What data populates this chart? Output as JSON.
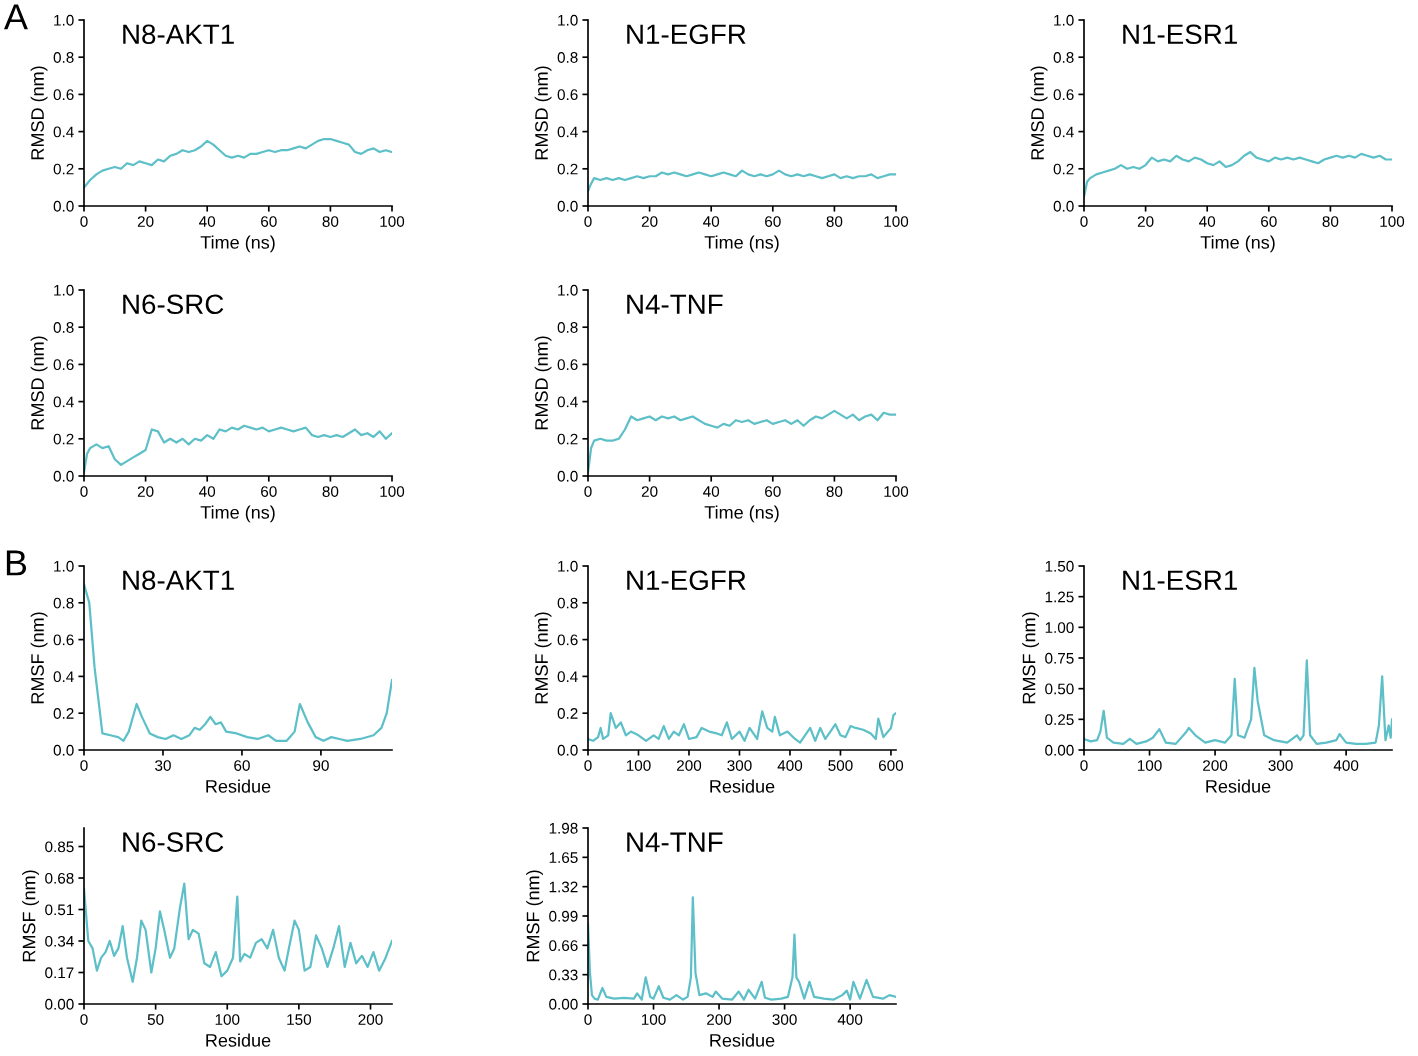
{
  "chart_data": [
    {
      "type": "line",
      "title": "N8-AKT1",
      "xlabel": "Time (ns)",
      "ylabel": "RMSD (nm)",
      "annotations": [
        "A"
      ],
      "xlim": [
        0,
        100
      ],
      "ylim": [
        0,
        1
      ],
      "xticks": [
        0,
        20,
        40,
        60,
        80,
        100
      ],
      "yticks": [
        {
          "value": 0,
          "label": "0.0"
        },
        0.2,
        0.4,
        0.6,
        0.8,
        {
          "value": 1,
          "label": "1.0"
        }
      ],
      "series": [
        {
          "color": "#5dbfc7",
          "x": [
            0,
            2,
            4,
            6,
            8,
            10,
            12,
            14,
            16,
            18,
            20,
            22,
            24,
            26,
            28,
            30,
            32,
            34,
            36,
            38,
            40,
            42,
            44,
            46,
            48,
            50,
            52,
            54,
            56,
            58,
            60,
            62,
            64,
            66,
            68,
            70,
            72,
            74,
            76,
            78,
            80,
            82,
            84,
            86,
            88,
            90,
            92,
            94,
            96,
            98,
            100
          ],
          "values": [
            0.1,
            0.14,
            0.17,
            0.19,
            0.2,
            0.21,
            0.2,
            0.23,
            0.22,
            0.24,
            0.23,
            0.22,
            0.25,
            0.24,
            0.27,
            0.28,
            0.3,
            0.29,
            0.3,
            0.32,
            0.35,
            0.33,
            0.3,
            0.27,
            0.26,
            0.27,
            0.26,
            0.28,
            0.28,
            0.29,
            0.3,
            0.29,
            0.3,
            0.3,
            0.31,
            0.32,
            0.31,
            0.33,
            0.35,
            0.36,
            0.36,
            0.35,
            0.34,
            0.33,
            0.29,
            0.28,
            0.3,
            0.31,
            0.29,
            0.3,
            0.29
          ]
        }
      ]
    },
    {
      "type": "line",
      "title": "N1-EGFR",
      "xlabel": "Time (ns)",
      "ylabel": "RMSD (nm)",
      "xlim": [
        0,
        100
      ],
      "ylim": [
        0,
        1
      ],
      "xticks": [
        0,
        20,
        40,
        60,
        80,
        100
      ],
      "yticks": [
        {
          "value": 0,
          "label": "0.0"
        },
        0.2,
        0.4,
        0.6,
        0.8,
        {
          "value": 1,
          "label": "1.0"
        }
      ],
      "series": [
        {
          "color": "#5dbfc7",
          "x": [
            0,
            1,
            2,
            4,
            6,
            8,
            10,
            12,
            14,
            16,
            18,
            20,
            22,
            24,
            26,
            28,
            30,
            32,
            34,
            36,
            38,
            40,
            42,
            44,
            46,
            48,
            50,
            52,
            54,
            56,
            58,
            60,
            62,
            64,
            66,
            68,
            70,
            72,
            74,
            76,
            78,
            80,
            82,
            84,
            86,
            88,
            90,
            92,
            94,
            96,
            98,
            100
          ],
          "values": [
            0.08,
            0.12,
            0.15,
            0.14,
            0.15,
            0.14,
            0.15,
            0.14,
            0.15,
            0.16,
            0.15,
            0.16,
            0.16,
            0.18,
            0.17,
            0.18,
            0.17,
            0.16,
            0.17,
            0.18,
            0.17,
            0.16,
            0.17,
            0.18,
            0.17,
            0.16,
            0.19,
            0.17,
            0.16,
            0.17,
            0.16,
            0.17,
            0.19,
            0.17,
            0.16,
            0.17,
            0.16,
            0.17,
            0.16,
            0.15,
            0.16,
            0.17,
            0.15,
            0.16,
            0.15,
            0.16,
            0.16,
            0.17,
            0.15,
            0.16,
            0.17,
            0.17
          ]
        }
      ]
    },
    {
      "type": "line",
      "title": "N1-ESR1",
      "xlabel": "Time (ns)",
      "ylabel": "RMSD (nm)",
      "xlim": [
        0,
        100
      ],
      "ylim": [
        0,
        1
      ],
      "xticks": [
        0,
        20,
        40,
        60,
        80,
        100
      ],
      "yticks": [
        {
          "value": 0,
          "label": "0.0"
        },
        0.2,
        0.4,
        0.6,
        0.8,
        {
          "value": 1,
          "label": "1.0"
        }
      ],
      "series": [
        {
          "color": "#5dbfc7",
          "x": [
            0,
            1,
            2,
            4,
            6,
            8,
            10,
            12,
            14,
            16,
            18,
            20,
            22,
            24,
            26,
            28,
            30,
            32,
            34,
            36,
            38,
            40,
            42,
            44,
            46,
            48,
            50,
            52,
            54,
            56,
            58,
            60,
            62,
            64,
            66,
            68,
            70,
            72,
            74,
            76,
            78,
            80,
            82,
            84,
            86,
            88,
            90,
            92,
            94,
            96,
            98,
            100
          ],
          "values": [
            0.05,
            0.13,
            0.15,
            0.17,
            0.18,
            0.19,
            0.2,
            0.22,
            0.2,
            0.21,
            0.2,
            0.22,
            0.26,
            0.24,
            0.25,
            0.24,
            0.27,
            0.25,
            0.24,
            0.26,
            0.25,
            0.23,
            0.22,
            0.24,
            0.21,
            0.22,
            0.24,
            0.27,
            0.29,
            0.26,
            0.25,
            0.24,
            0.26,
            0.25,
            0.26,
            0.25,
            0.26,
            0.25,
            0.24,
            0.23,
            0.25,
            0.26,
            0.27,
            0.26,
            0.27,
            0.26,
            0.28,
            0.27,
            0.26,
            0.27,
            0.25,
            0.25
          ]
        }
      ]
    },
    {
      "type": "line",
      "title": "N6-SRC",
      "xlabel": "Time (ns)",
      "ylabel": "RMSD (nm)",
      "xlim": [
        0,
        100
      ],
      "ylim": [
        0,
        1
      ],
      "xticks": [
        0,
        20,
        40,
        60,
        80,
        100
      ],
      "yticks": [
        {
          "value": 0,
          "label": "0.0"
        },
        0.2,
        0.4,
        0.6,
        0.8,
        {
          "value": 1,
          "label": "1.0"
        }
      ],
      "series": [
        {
          "color": "#5dbfc7",
          "x": [
            0,
            1,
            2,
            4,
            6,
            8,
            10,
            12,
            14,
            16,
            18,
            20,
            22,
            24,
            26,
            28,
            30,
            32,
            34,
            36,
            38,
            40,
            42,
            44,
            46,
            48,
            50,
            52,
            54,
            56,
            58,
            60,
            62,
            64,
            66,
            68,
            70,
            72,
            74,
            76,
            78,
            80,
            82,
            84,
            86,
            88,
            90,
            92,
            94,
            96,
            98,
            100
          ],
          "values": [
            0.02,
            0.12,
            0.15,
            0.17,
            0.15,
            0.16,
            0.09,
            0.06,
            0.08,
            0.1,
            0.12,
            0.14,
            0.25,
            0.24,
            0.18,
            0.2,
            0.18,
            0.2,
            0.17,
            0.2,
            0.19,
            0.22,
            0.2,
            0.25,
            0.24,
            0.26,
            0.25,
            0.27,
            0.26,
            0.25,
            0.26,
            0.24,
            0.25,
            0.26,
            0.25,
            0.24,
            0.25,
            0.26,
            0.22,
            0.21,
            0.22,
            0.21,
            0.22,
            0.21,
            0.23,
            0.25,
            0.22,
            0.23,
            0.21,
            0.24,
            0.2,
            0.23
          ]
        }
      ]
    },
    {
      "type": "line",
      "title": "N4-TNF",
      "xlabel": "Time (ns)",
      "ylabel": "RMSD (nm)",
      "xlim": [
        0,
        100
      ],
      "ylim": [
        0,
        1
      ],
      "xticks": [
        0,
        20,
        40,
        60,
        80,
        100
      ],
      "yticks": [
        {
          "value": 0,
          "label": "0.0"
        },
        0.2,
        0.4,
        0.6,
        0.8,
        {
          "value": 1,
          "label": "1.0"
        }
      ],
      "series": [
        {
          "color": "#5dbfc7",
          "x": [
            0,
            1,
            2,
            4,
            6,
            8,
            10,
            12,
            14,
            16,
            18,
            20,
            22,
            24,
            26,
            28,
            30,
            32,
            34,
            36,
            38,
            40,
            42,
            44,
            46,
            48,
            50,
            52,
            54,
            56,
            58,
            60,
            62,
            64,
            66,
            68,
            70,
            72,
            74,
            76,
            78,
            80,
            82,
            84,
            86,
            88,
            90,
            92,
            94,
            96,
            98,
            100
          ],
          "values": [
            0.02,
            0.15,
            0.19,
            0.2,
            0.19,
            0.19,
            0.2,
            0.25,
            0.32,
            0.3,
            0.31,
            0.32,
            0.3,
            0.32,
            0.31,
            0.32,
            0.3,
            0.31,
            0.32,
            0.3,
            0.28,
            0.27,
            0.26,
            0.28,
            0.27,
            0.3,
            0.29,
            0.3,
            0.28,
            0.29,
            0.3,
            0.28,
            0.29,
            0.3,
            0.28,
            0.3,
            0.27,
            0.3,
            0.32,
            0.31,
            0.33,
            0.35,
            0.33,
            0.31,
            0.33,
            0.3,
            0.32,
            0.33,
            0.3,
            0.34,
            0.33,
            0.33
          ]
        }
      ]
    },
    {
      "type": "line",
      "title": "N8-AKT1",
      "xlabel": "Residue",
      "ylabel": "RMSF (nm)",
      "annotations": [
        "B"
      ],
      "xlim": [
        0,
        117
      ],
      "ylim": [
        0,
        1
      ],
      "xticks": [
        0,
        30,
        60,
        90
      ],
      "yticks": [
        {
          "value": 0,
          "label": "0.0"
        },
        0.2,
        0.4,
        0.6,
        0.8,
        {
          "value": 1,
          "label": "1.0"
        }
      ],
      "series": [
        {
          "color": "#5dbfc7",
          "x": [
            0,
            2,
            4,
            7,
            10,
            13,
            15,
            17,
            20,
            22,
            25,
            28,
            31,
            34,
            37,
            40,
            42,
            44,
            46,
            48,
            50,
            52,
            54,
            58,
            62,
            66,
            70,
            73,
            77,
            80,
            82,
            85,
            88,
            91,
            94,
            97,
            100,
            105,
            110,
            113,
            115,
            117
          ],
          "values": [
            0.9,
            0.8,
            0.45,
            0.09,
            0.08,
            0.07,
            0.05,
            0.1,
            0.25,
            0.18,
            0.09,
            0.07,
            0.06,
            0.08,
            0.06,
            0.08,
            0.12,
            0.11,
            0.14,
            0.18,
            0.14,
            0.15,
            0.1,
            0.09,
            0.07,
            0.06,
            0.08,
            0.05,
            0.05,
            0.1,
            0.25,
            0.15,
            0.07,
            0.05,
            0.07,
            0.06,
            0.05,
            0.06,
            0.08,
            0.12,
            0.2,
            0.38
          ]
        }
      ]
    },
    {
      "type": "line",
      "title": "N1-EGFR",
      "xlabel": "Residue",
      "ylabel": "RMSF (nm)",
      "xlim": [
        0,
        610
      ],
      "ylim": [
        0,
        1
      ],
      "xticks": [
        0,
        100,
        200,
        300,
        400,
        500,
        600
      ],
      "yticks": [
        {
          "value": 0,
          "label": "0.0"
        },
        0.2,
        0.4,
        0.6,
        0.8,
        {
          "value": 1,
          "label": "1.0"
        }
      ],
      "series": [
        {
          "color": "#5dbfc7",
          "x": [
            0,
            10,
            20,
            25,
            30,
            40,
            45,
            55,
            65,
            75,
            85,
            100,
            115,
            130,
            140,
            150,
            160,
            170,
            180,
            190,
            200,
            215,
            225,
            240,
            255,
            265,
            275,
            285,
            300,
            310,
            320,
            335,
            345,
            355,
            365,
            370,
            380,
            395,
            410,
            420,
            440,
            450,
            460,
            470,
            480,
            490,
            500,
            510,
            520,
            530,
            545,
            560,
            570,
            575,
            585,
            600,
            605,
            610
          ],
          "values": [
            0.06,
            0.05,
            0.07,
            0.12,
            0.06,
            0.08,
            0.2,
            0.12,
            0.15,
            0.08,
            0.1,
            0.08,
            0.05,
            0.08,
            0.06,
            0.13,
            0.06,
            0.1,
            0.08,
            0.14,
            0.06,
            0.07,
            0.12,
            0.1,
            0.09,
            0.08,
            0.15,
            0.06,
            0.1,
            0.05,
            0.12,
            0.06,
            0.21,
            0.12,
            0.1,
            0.18,
            0.08,
            0.1,
            0.06,
            0.04,
            0.12,
            0.05,
            0.12,
            0.06,
            0.1,
            0.14,
            0.08,
            0.07,
            0.13,
            0.12,
            0.11,
            0.09,
            0.06,
            0.17,
            0.07,
            0.12,
            0.19,
            0.2
          ]
        }
      ]
    },
    {
      "type": "line",
      "title": "N1-ESR1",
      "xlabel": "Residue",
      "ylabel": "RMSF (nm)",
      "xlim": [
        0,
        470
      ],
      "ylim": [
        0,
        1.5
      ],
      "xticks": [
        0,
        100,
        200,
        300,
        400
      ],
      "yticks": [
        {
          "value": 0,
          "label": "0.00"
        },
        {
          "value": 0.25,
          "label": "0.25"
        },
        {
          "value": 0.5,
          "label": "0.50"
        },
        {
          "value": 0.75,
          "label": "0.75"
        },
        {
          "value": 1.0,
          "label": "1.00"
        },
        {
          "value": 1.25,
          "label": "1.25"
        },
        {
          "value": 1.5,
          "label": "1.50"
        }
      ],
      "series": [
        {
          "color": "#5dbfc7",
          "x": [
            0,
            10,
            20,
            25,
            30,
            35,
            45,
            60,
            70,
            80,
            95,
            105,
            115,
            125,
            140,
            155,
            160,
            170,
            185,
            200,
            215,
            225,
            230,
            235,
            245,
            255,
            260,
            265,
            275,
            290,
            310,
            325,
            330,
            335,
            340,
            345,
            355,
            370,
            385,
            390,
            400,
            415,
            430,
            445,
            450,
            455,
            460,
            465,
            468,
            470
          ],
          "values": [
            0.09,
            0.07,
            0.08,
            0.15,
            0.32,
            0.1,
            0.06,
            0.05,
            0.09,
            0.05,
            0.07,
            0.1,
            0.17,
            0.06,
            0.05,
            0.14,
            0.18,
            0.12,
            0.06,
            0.08,
            0.06,
            0.12,
            0.58,
            0.12,
            0.1,
            0.25,
            0.67,
            0.4,
            0.12,
            0.08,
            0.06,
            0.12,
            0.08,
            0.12,
            0.73,
            0.12,
            0.05,
            0.06,
            0.08,
            0.13,
            0.06,
            0.05,
            0.05,
            0.06,
            0.2,
            0.6,
            0.08,
            0.2,
            0.1,
            0.25
          ]
        }
      ]
    },
    {
      "type": "line",
      "title": "N6-SRC",
      "xlabel": "Residue",
      "ylabel": "RMSF (nm)",
      "xlim": [
        0,
        215
      ],
      "ylim": [
        0,
        0.95
      ],
      "xticks": [
        0,
        50,
        100,
        150,
        200
      ],
      "yticks": [
        {
          "value": 0,
          "label": "0.00"
        },
        {
          "value": 0.17,
          "label": "0.17"
        },
        {
          "value": 0.34,
          "label": "0.34"
        },
        {
          "value": 0.51,
          "label": "0.51"
        },
        {
          "value": 0.68,
          "label": "0.68"
        },
        {
          "value": 0.85,
          "label": "0.85"
        }
      ],
      "series": [
        {
          "color": "#5dbfc7",
          "x": [
            0,
            3,
            6,
            9,
            12,
            15,
            18,
            21,
            24,
            27,
            30,
            34,
            37,
            40,
            43,
            47,
            50,
            53,
            56,
            60,
            63,
            67,
            70,
            73,
            76,
            80,
            84,
            88,
            92,
            96,
            100,
            104,
            107,
            109,
            112,
            116,
            120,
            124,
            128,
            132,
            136,
            140,
            143,
            147,
            150,
            154,
            158,
            162,
            166,
            170,
            174,
            178,
            182,
            186,
            190,
            194,
            198,
            202,
            206,
            210,
            215
          ],
          "values": [
            0.62,
            0.34,
            0.3,
            0.18,
            0.25,
            0.28,
            0.34,
            0.26,
            0.3,
            0.42,
            0.25,
            0.12,
            0.25,
            0.45,
            0.4,
            0.17,
            0.3,
            0.5,
            0.4,
            0.25,
            0.3,
            0.52,
            0.65,
            0.35,
            0.4,
            0.38,
            0.22,
            0.2,
            0.28,
            0.15,
            0.18,
            0.25,
            0.58,
            0.23,
            0.27,
            0.25,
            0.33,
            0.35,
            0.3,
            0.4,
            0.25,
            0.18,
            0.3,
            0.45,
            0.4,
            0.18,
            0.2,
            0.37,
            0.3,
            0.2,
            0.3,
            0.42,
            0.2,
            0.33,
            0.22,
            0.26,
            0.2,
            0.28,
            0.18,
            0.24,
            0.34
          ]
        }
      ]
    },
    {
      "type": "line",
      "title": "N4-TNF",
      "xlabel": "Residue",
      "ylabel": "RMSF (nm)",
      "xlim": [
        0,
        470
      ],
      "ylim": [
        0,
        1.98
      ],
      "xticks": [
        0,
        100,
        200,
        300,
        400
      ],
      "yticks": [
        {
          "value": 0,
          "label": "0.00"
        },
        {
          "value": 0.33,
          "label": "0.33"
        },
        {
          "value": 0.66,
          "label": "0.66"
        },
        {
          "value": 0.99,
          "label": "0.99"
        },
        {
          "value": 1.32,
          "label": "1.32"
        },
        {
          "value": 1.65,
          "label": "1.65"
        },
        {
          "value": 1.98,
          "label": "1.98"
        }
      ],
      "series": [
        {
          "color": "#5dbfc7",
          "x": [
            0,
            3,
            6,
            10,
            15,
            22,
            28,
            40,
            55,
            70,
            75,
            82,
            88,
            95,
            100,
            108,
            115,
            125,
            135,
            145,
            152,
            157,
            160,
            164,
            170,
            180,
            190,
            195,
            205,
            220,
            230,
            238,
            245,
            255,
            265,
            270,
            280,
            295,
            305,
            312,
            315,
            318,
            322,
            330,
            338,
            345,
            360,
            375,
            388,
            395,
            400,
            405,
            415,
            425,
            435,
            450,
            460,
            470
          ],
          "values": [
            0.9,
            0.35,
            0.1,
            0.06,
            0.05,
            0.18,
            0.08,
            0.06,
            0.07,
            0.06,
            0.12,
            0.05,
            0.3,
            0.08,
            0.06,
            0.2,
            0.07,
            0.05,
            0.1,
            0.05,
            0.08,
            0.3,
            1.2,
            0.35,
            0.1,
            0.12,
            0.08,
            0.14,
            0.06,
            0.05,
            0.14,
            0.05,
            0.16,
            0.06,
            0.25,
            0.07,
            0.05,
            0.06,
            0.08,
            0.3,
            0.78,
            0.3,
            0.25,
            0.06,
            0.25,
            0.08,
            0.06,
            0.05,
            0.1,
            0.15,
            0.05,
            0.25,
            0.06,
            0.27,
            0.08,
            0.06,
            0.1,
            0.08
          ]
        }
      ]
    }
  ]
}
